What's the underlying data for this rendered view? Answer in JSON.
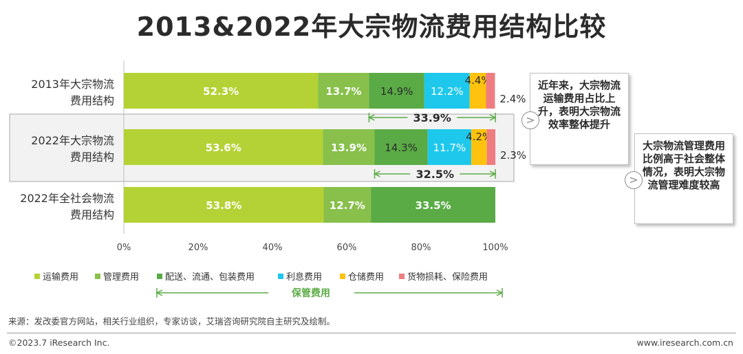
{
  "title": "2013&2022年大宗物流费用结构比较",
  "chart_data": {
    "type": "bar",
    "orientation": "horizontal",
    "stacked": true,
    "categories": [
      [
        "2013年大宗物流",
        "费用结构"
      ],
      [
        "2022年大宗物流",
        "费用结构"
      ],
      [
        "2022年全社会物流",
        "费用结构"
      ]
    ],
    "series": [
      {
        "name": "运输费用",
        "color": "#b4d235",
        "values": [
          52.3,
          53.6,
          53.8
        ],
        "labels": [
          "52.3%",
          "53.6%",
          "53.8%"
        ]
      },
      {
        "name": "管理费用",
        "color": "#88c04b",
        "values": [
          13.7,
          13.9,
          12.7
        ],
        "labels": [
          "13.7%",
          "13.9%",
          "12.7%"
        ]
      },
      {
        "name": "配送、流通、包装费用",
        "color": "#5aab45",
        "values": [
          14.9,
          14.3,
          33.5
        ],
        "labels": [
          "14.9%",
          "14.3%",
          "33.5%"
        ]
      },
      {
        "name": "利息费用",
        "color": "#1ec8ec",
        "values": [
          12.2,
          11.7,
          0
        ],
        "labels": [
          "12.2%",
          "11.7%",
          ""
        ]
      },
      {
        "name": "仓储费用",
        "color": "#ffc20e",
        "values": [
          4.4,
          4.2,
          0
        ],
        "labels": [
          "4.4%",
          "4.2%",
          ""
        ]
      },
      {
        "name": "货物损耗、保险费用",
        "color": "#ef7c80",
        "values": [
          2.4,
          2.3,
          0
        ],
        "labels": [
          "2.4%",
          "2.3%",
          ""
        ]
      }
    ],
    "xlim": [
      0,
      100
    ],
    "xticks": [
      "0%",
      "20%",
      "40%",
      "60%",
      "80%",
      "100%"
    ],
    "storage_totals": [
      {
        "row": 0,
        "value": 33.9,
        "label": "33.9%"
      },
      {
        "row": 1,
        "value": 32.5,
        "label": "32.5%"
      }
    ],
    "legend_position": "bottom",
    "legend_group_label": "保管费用",
    "highlight_row": 1
  },
  "notes": [
    "近年来，大宗物流运输费用占比上升，表明大宗物流效率整体提升",
    "大宗物流管理费用比例高于社会整体情况，表明大宗物流管理难度较高"
  ],
  "footer": {
    "source": "来源：发改委官方网站，相关行业组织，专家访谈，艾瑞咨询研究院自主研究及绘制。",
    "copyright": "©2023.7 iResearch Inc.",
    "website": "www.iresearch.com.cn"
  }
}
